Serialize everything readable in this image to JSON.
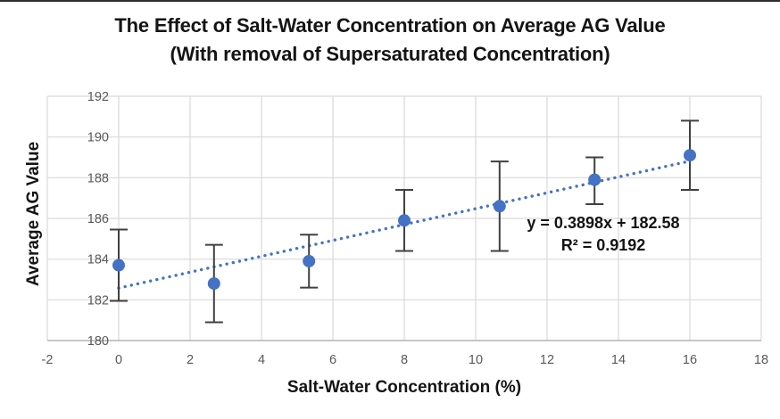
{
  "chart_data": {
    "type": "scatter",
    "title": "The Effect of Salt-Water Concentration on Average AG Value",
    "subtitle": "(With removal of Supersaturated Concentration)",
    "xlabel": "Salt-Water Concentration (%)",
    "ylabel": "Average AG Value",
    "xlim": [
      -2,
      18
    ],
    "ylim": [
      180,
      192
    ],
    "x_ticks": [
      -2,
      0,
      2,
      4,
      6,
      8,
      10,
      12,
      14,
      16,
      18
    ],
    "y_ticks": [
      180,
      182,
      184,
      186,
      188,
      190,
      192
    ],
    "grid": true,
    "legend": "none",
    "points": [
      {
        "x": 0,
        "y": 183.7,
        "err_up": 1.75,
        "err_down": 1.75
      },
      {
        "x": 2.67,
        "y": 182.8,
        "err_up": 1.9,
        "err_down": 1.9
      },
      {
        "x": 5.33,
        "y": 183.9,
        "err_up": 1.3,
        "err_down": 1.3
      },
      {
        "x": 8,
        "y": 185.9,
        "err_up": 1.5,
        "err_down": 1.5
      },
      {
        "x": 10.67,
        "y": 186.6,
        "err_up": 2.2,
        "err_down": 2.2
      },
      {
        "x": 13.33,
        "y": 187.9,
        "err_up": 1.1,
        "err_down": 1.2
      },
      {
        "x": 16,
        "y": 189.1,
        "err_up": 1.7,
        "err_down": 1.7
      }
    ],
    "trendline": {
      "slope": 0.3898,
      "intercept": 182.58,
      "x_start": 0,
      "x_end": 16,
      "style": "dotted",
      "equation": "y = 0.3898x + 182.58",
      "r_squared": "R² = 0.9192"
    },
    "colors": {
      "marker": "#4472C4",
      "trendline": "#4472C4",
      "error_bar": "#404040",
      "gridline": "#D9D9D9",
      "axis_line": "#BFBFBF",
      "tick_label": "#595959",
      "text": "#141414"
    }
  }
}
